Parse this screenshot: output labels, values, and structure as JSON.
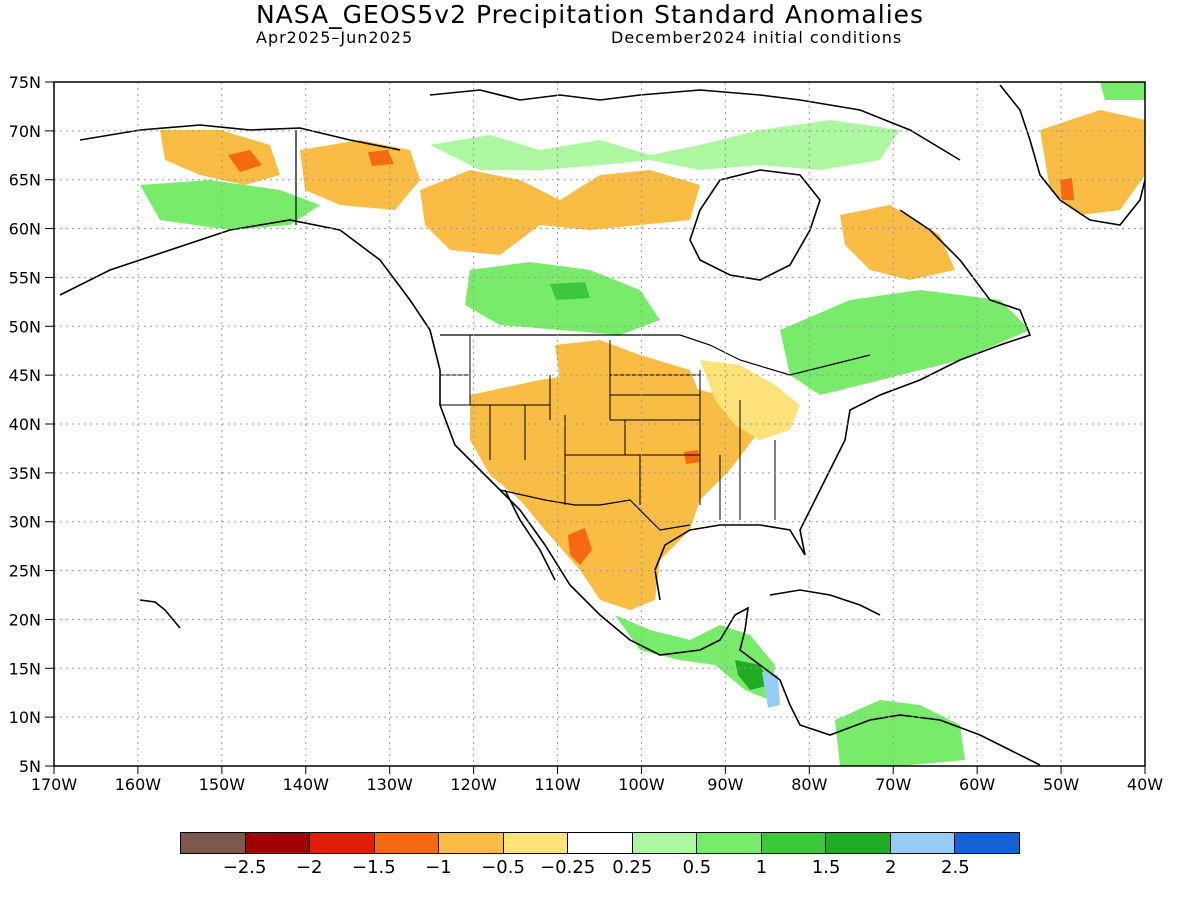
{
  "title": "NASA_GEOS5v2 Precipitation Standard Anomalies",
  "subtitle_left": "Apr2025–Jun2025",
  "subtitle_right": "December2024 initial conditions",
  "map": {
    "lat_labels": [
      "75N",
      "70N",
      "65N",
      "60N",
      "55N",
      "50N",
      "45N",
      "40N",
      "35N",
      "30N",
      "25N",
      "20N",
      "15N",
      "10N",
      "5N"
    ],
    "lon_labels": [
      "170W",
      "160W",
      "150W",
      "140W",
      "130W",
      "120W",
      "110W",
      "100W",
      "90W",
      "80W",
      "70W",
      "60W",
      "50W",
      "40W"
    ],
    "extent": {
      "lon_min": -170,
      "lon_max": -40,
      "lat_min": 5,
      "lat_max": 75
    },
    "grid": "dotted",
    "colors": {
      "dry_moderate": "#f9bd45",
      "dry_strong": "#f56a10",
      "wet_light": "#adf7a0",
      "wet_moderate": "#78ec6a",
      "wet_strong": "#2fb936",
      "very_wet": "#97cdf5"
    }
  },
  "colorbar": {
    "colors": [
      "#7b5a4d",
      "#a30000",
      "#e01e07",
      "#f56a10",
      "#f9bd45",
      "#fde279",
      "#ffffff",
      "#adf7a0",
      "#78ec6a",
      "#3bc93b",
      "#21ab25",
      "#97cdf5",
      "#1562d6"
    ],
    "labels": [
      "−2.5",
      "−2",
      "−1.5",
      "−1",
      "−0.5",
      "−0.25",
      "0.25",
      "0.5",
      "1",
      "1.5",
      "2",
      "2.5"
    ]
  }
}
